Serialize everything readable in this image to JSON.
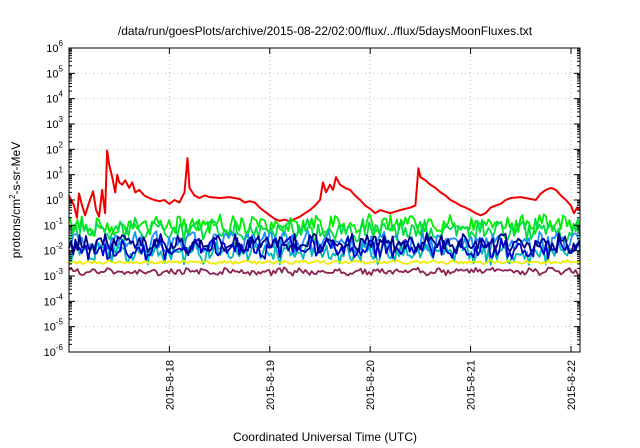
{
  "chart_data": {
    "type": "line",
    "title": "/data/run/goesPlots/archive/2015-08-22/02:00/flux/../flux/5daysMoonFluxes.txt",
    "xlabel": "Coordinated Universal Time (UTC)",
    "ylabel_parts": {
      "pre": "protons/cm",
      "sup": "2",
      "post": "-s-sr-MeV"
    },
    "y_scale": "log",
    "ylim": [
      1e-06,
      1000000.0
    ],
    "y_ticks": [
      {
        "base": "10",
        "exp": "-6",
        "value": 1e-06
      },
      {
        "base": "10",
        "exp": "-5",
        "value": 1e-05
      },
      {
        "base": "10",
        "exp": "-4",
        "value": 0.0001
      },
      {
        "base": "10",
        "exp": "-3",
        "value": 0.001
      },
      {
        "base": "10",
        "exp": "-2",
        "value": 0.01
      },
      {
        "base": "10",
        "exp": "-1",
        "value": 0.1
      },
      {
        "base": "10",
        "exp": "0",
        "value": 1
      },
      {
        "base": "10",
        "exp": "1",
        "value": 10
      },
      {
        "base": "10",
        "exp": "2",
        "value": 100
      },
      {
        "base": "10",
        "exp": "3",
        "value": 1000
      },
      {
        "base": "10",
        "exp": "4",
        "value": 10000
      },
      {
        "base": "10",
        "exp": "5",
        "value": 100000
      },
      {
        "base": "10",
        "exp": "6",
        "value": 1000000
      }
    ],
    "x_range_days": [
      17.0,
      22.09
    ],
    "x_ticks": [
      {
        "label": "2015-8-18",
        "day": 18
      },
      {
        "label": "2015-8-19",
        "day": 19
      },
      {
        "label": "2015-8-20",
        "day": 20
      },
      {
        "label": "2015-8-21",
        "day": 21
      },
      {
        "label": "2015-8-22",
        "day": 22
      }
    ],
    "grid": true,
    "series": [
      {
        "color": "#ee0000",
        "points": [
          [
            17.0,
            1.5
          ],
          [
            17.05,
            0.6
          ],
          [
            17.08,
            0.2
          ],
          [
            17.1,
            1.8
          ],
          [
            17.13,
            0.6
          ],
          [
            17.16,
            0.25
          ],
          [
            17.2,
            0.8
          ],
          [
            17.24,
            2.2
          ],
          [
            17.27,
            0.4
          ],
          [
            17.3,
            0.22
          ],
          [
            17.33,
            2.5
          ],
          [
            17.36,
            0.3
          ],
          [
            17.38,
            90
          ],
          [
            17.4,
            25
          ],
          [
            17.43,
            8
          ],
          [
            17.46,
            2
          ],
          [
            17.48,
            10
          ],
          [
            17.5,
            5
          ],
          [
            17.53,
            4
          ],
          [
            17.56,
            6
          ],
          [
            17.6,
            3
          ],
          [
            17.63,
            5
          ],
          [
            17.66,
            2
          ],
          [
            17.7,
            2.5
          ],
          [
            17.75,
            1.5
          ],
          [
            17.8,
            1.2
          ],
          [
            17.85,
            1.0
          ],
          [
            17.9,
            0.9
          ],
          [
            17.95,
            1.0
          ],
          [
            18.0,
            0.7
          ],
          [
            18.05,
            1.0
          ],
          [
            18.1,
            0.8
          ],
          [
            18.15,
            2.0
          ],
          [
            18.18,
            45
          ],
          [
            18.2,
            3
          ],
          [
            18.25,
            1.5
          ],
          [
            18.3,
            1.2
          ],
          [
            18.35,
            1.5
          ],
          [
            18.4,
            1.3
          ],
          [
            18.5,
            1.2
          ],
          [
            18.6,
            1.3
          ],
          [
            18.7,
            1.1
          ],
          [
            18.75,
            0.8
          ],
          [
            18.8,
            0.9
          ],
          [
            18.85,
            0.8
          ],
          [
            18.9,
            0.5
          ],
          [
            18.95,
            0.35
          ],
          [
            19.0,
            0.25
          ],
          [
            19.05,
            0.18
          ],
          [
            19.1,
            0.15
          ],
          [
            19.15,
            0.17
          ],
          [
            19.2,
            0.14
          ],
          [
            19.25,
            0.18
          ],
          [
            19.3,
            0.22
          ],
          [
            19.35,
            0.3
          ],
          [
            19.4,
            0.4
          ],
          [
            19.45,
            0.6
          ],
          [
            19.5,
            1.0
          ],
          [
            19.53,
            5
          ],
          [
            19.56,
            2
          ],
          [
            19.6,
            4
          ],
          [
            19.63,
            2.5
          ],
          [
            19.66,
            8
          ],
          [
            19.7,
            4
          ],
          [
            19.75,
            3
          ],
          [
            19.8,
            2.5
          ],
          [
            19.85,
            1.5
          ],
          [
            19.9,
            1.0
          ],
          [
            19.95,
            0.6
          ],
          [
            20.0,
            0.45
          ],
          [
            20.05,
            0.3
          ],
          [
            20.1,
            0.4
          ],
          [
            20.15,
            0.35
          ],
          [
            20.2,
            0.3
          ],
          [
            20.25,
            0.35
          ],
          [
            20.3,
            0.4
          ],
          [
            20.35,
            0.45
          ],
          [
            20.4,
            0.5
          ],
          [
            20.45,
            0.6
          ],
          [
            20.48,
            18
          ],
          [
            20.5,
            8
          ],
          [
            20.55,
            6
          ],
          [
            20.6,
            4
          ],
          [
            20.65,
            3
          ],
          [
            20.7,
            2
          ],
          [
            20.75,
            1.5
          ],
          [
            20.8,
            1.0
          ],
          [
            20.85,
            0.8
          ],
          [
            20.9,
            0.6
          ],
          [
            20.95,
            0.5
          ],
          [
            21.0,
            0.4
          ],
          [
            21.05,
            0.3
          ],
          [
            21.1,
            0.25
          ],
          [
            21.15,
            0.3
          ],
          [
            21.2,
            0.5
          ],
          [
            21.25,
            0.6
          ],
          [
            21.3,
            0.7
          ],
          [
            21.35,
            1.0
          ],
          [
            21.4,
            1.2
          ],
          [
            21.5,
            1.3
          ],
          [
            21.6,
            1.1
          ],
          [
            21.65,
            1.0
          ],
          [
            21.7,
            1.8
          ],
          [
            21.75,
            2.5
          ],
          [
            21.8,
            3
          ],
          [
            21.85,
            2.5
          ],
          [
            21.9,
            1.5
          ],
          [
            21.95,
            1.0
          ],
          [
            22.0,
            0.6
          ],
          [
            22.03,
            0.3
          ],
          [
            22.06,
            0.5
          ],
          [
            22.09,
            0.4
          ]
        ]
      },
      {
        "color": "#00ee00",
        "base": 0.1,
        "amp": 0.35,
        "seed": 3
      },
      {
        "color": "#00dd44",
        "base": 0.065,
        "amp": 0.35,
        "seed": 11
      },
      {
        "color": "#1e90ff",
        "base": 0.022,
        "amp": 0.35,
        "seed": 5
      },
      {
        "color": "#00b8b8",
        "base": 0.008,
        "amp": 0.35,
        "seed": 17
      },
      {
        "color": "#0000cc",
        "base": 0.012,
        "amp": 0.35,
        "seed": 29
      },
      {
        "color": "#00008b",
        "base": 0.02,
        "amp": 0.3,
        "seed": 41
      },
      {
        "color": "#eeee00",
        "base": 0.0035,
        "amp": 0.06,
        "seed": 7
      },
      {
        "color": "#8b2252",
        "base": 0.0015,
        "amp": 0.12,
        "seed": 13
      }
    ]
  }
}
